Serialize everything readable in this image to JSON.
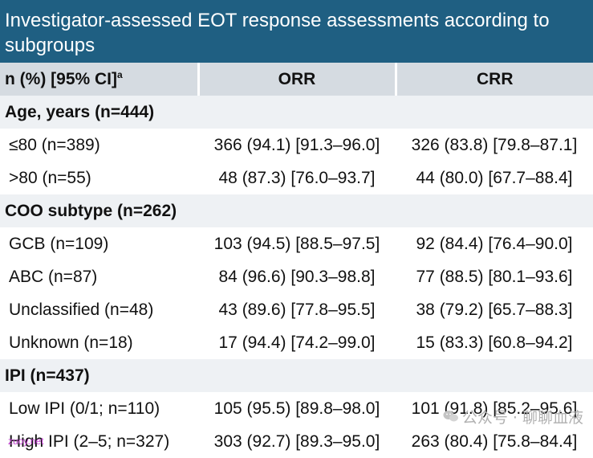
{
  "title": "Investigator-assessed EOT response assessments according to subgroups",
  "header": {
    "col1": "n (%) [95% CI]",
    "col1_sup": "a",
    "col2": "ORR",
    "col3": "CRR"
  },
  "sections": [
    {
      "label": "Age, years (n=444)",
      "rows": [
        {
          "label": "≤80 (n=389)",
          "orr": "366 (94.1) [91.3–96.0]",
          "crr": "326 (83.8) [79.8–87.1]"
        },
        {
          "label": ">80 (n=55)",
          "orr": "48 (87.3) [76.0–93.7]",
          "crr": "44 (80.0) [67.7–88.4]"
        }
      ]
    },
    {
      "label": "COO subtype (n=262)",
      "rows": [
        {
          "label": "GCB (n=109)",
          "orr": "103 (94.5) [88.5–97.5]",
          "crr": "92 (84.4) [76.4–90.0]"
        },
        {
          "label": "ABC (n=87)",
          "orr": "84 (96.6) [90.3–98.8]",
          "crr": "77 (88.5) [80.1–93.6]"
        },
        {
          "label": "Unclassified (n=48)",
          "orr": "43 (89.6) [77.8–95.5]",
          "crr": "38 (79.2) [65.7–88.3]"
        },
        {
          "label": "Unknown (n=18)",
          "orr": "17 (94.4) [74.2–99.0]",
          "crr": "15 (83.3) [60.8–94.2]"
        }
      ]
    },
    {
      "label": "IPI (n=437)",
      "rows": [
        {
          "label": "Low IPI (0/1; n=110)",
          "orr": "105 (95.5) [89.8–98.0]",
          "crr": "101 (91.8) [85.2–95.6]"
        },
        {
          "label": "High IPI (2–5; n=327)",
          "orr": "303 (92.7) [89.3–95.0]",
          "crr": "263 (80.4) [75.8–84.4]"
        }
      ]
    }
  ],
  "watermark": "公众号 · 聊聊血液",
  "watermark_icon": "wechat-icon",
  "site_mark": "zuoy.net"
}
